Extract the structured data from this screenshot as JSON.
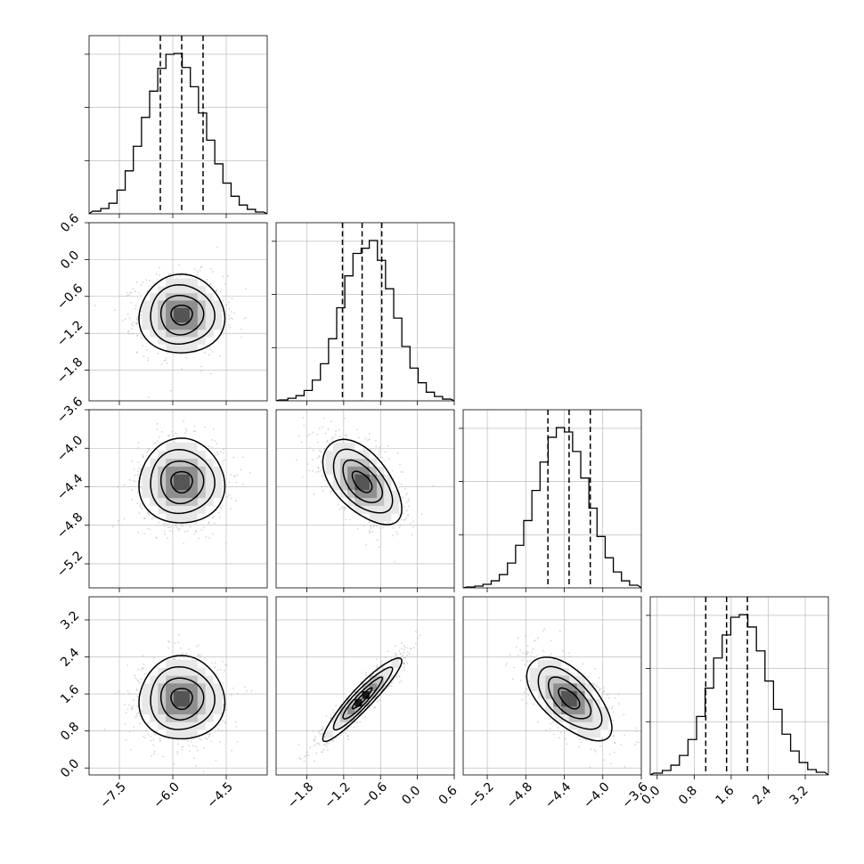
{
  "chart_data": {
    "type": "corner",
    "title": "",
    "parameters": [
      {
        "mean": -5.75,
        "sd": 0.6,
        "ticks": [
          -7.5,
          -6.0,
          -4.5
        ],
        "tick_labels": [
          "−7.5",
          "−6.0",
          "−4.5"
        ],
        "range": [
          -8.35,
          -3.35
        ],
        "quantiles": [
          -6.35,
          -5.75,
          -5.15
        ],
        "hist_counts": [
          3,
          6,
          12,
          27,
          49,
          77,
          110,
          140,
          166,
          182,
          183,
          167,
          145,
          115,
          84,
          57,
          35,
          20,
          10,
          5,
          2
        ]
      },
      {
        "mean": -0.9,
        "sd": 0.32,
        "ticks": [
          -1.8,
          -1.2,
          -0.6,
          0.0,
          0.6
        ],
        "tick_labels": [
          "−1.8",
          "−1.2",
          "−0.6",
          "0.0",
          "0.6"
        ],
        "range": [
          -2.3,
          0.6
        ],
        "quantiles": [
          -1.22,
          -0.9,
          -0.58
        ],
        "hist_counts": [
          1,
          3,
          6,
          12,
          24,
          43,
          72,
          108,
          145,
          171,
          177,
          186,
          163,
          130,
          96,
          63,
          38,
          21,
          10,
          5,
          2
        ]
      },
      {
        "mean": -4.35,
        "sd": 0.22,
        "ticks": [
          -5.2,
          -4.8,
          -4.4,
          -4.0,
          -3.6
        ],
        "tick_labels": [
          "−5.2",
          "−4.8",
          "−4.4",
          "−4.0",
          "−3.6"
        ],
        "range": [
          -5.45,
          -3.6
        ],
        "quantiles": [
          -4.57,
          -4.35,
          -4.13
        ],
        "hist_counts": [
          1,
          2,
          4,
          8,
          15,
          28,
          48,
          76,
          110,
          142,
          170,
          181,
          176,
          154,
          124,
          90,
          58,
          34,
          18,
          8,
          3
        ]
      },
      {
        "mean": 1.5,
        "sd": 0.45,
        "ticks": [
          0.0,
          0.8,
          1.6,
          2.4,
          3.2
        ],
        "tick_labels": [
          "0.0",
          "0.8",
          "1.6",
          "2.4",
          "3.2"
        ],
        "range": [
          -0.15,
          3.7
        ],
        "quantiles": [
          1.05,
          1.5,
          1.95
        ],
        "hist_counts": [
          2,
          5,
          11,
          22,
          40,
          66,
          98,
          132,
          158,
          178,
          181,
          167,
          140,
          106,
          74,
          46,
          27,
          14,
          6,
          3
        ]
      }
    ],
    "correlations": [
      [
        1,
        0,
        0,
        0
      ],
      [
        0,
        1,
        -0.55,
        0.93
      ],
      [
        0,
        -0.55,
        1,
        -0.62
      ],
      [
        0,
        0.93,
        -0.62,
        1
      ]
    ],
    "contour_levels_sigma": [
      0.5,
      1.0,
      1.5,
      2.0
    ],
    "grid": true,
    "point_color": "#b3b3b3",
    "density_colors": [
      "#ffffff",
      "#e8e8e8",
      "#c4c4c4",
      "#8f8f8f",
      "#555555",
      "#1a1a1a"
    ]
  }
}
